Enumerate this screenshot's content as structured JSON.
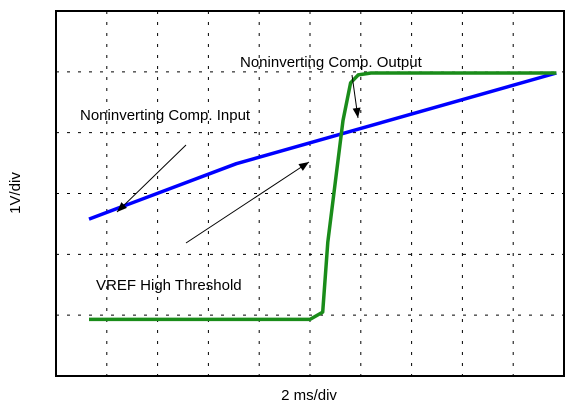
{
  "chart_data": {
    "type": "line",
    "xlabel": "2 ms/div",
    "ylabel": "1V/div",
    "xlim": [
      0,
      10
    ],
    "ylim": [
      0,
      6
    ],
    "grid": true,
    "x_divisions": 10,
    "y_divisions": 6,
    "series": [
      {
        "name": "Noninverting Comp. Input",
        "color": "#0000ff",
        "points": [
          [
            0.65,
            2.58
          ],
          [
            3.55,
            3.49
          ],
          [
            9.85,
            4.98
          ]
        ]
      },
      {
        "name": "Noninverting Comp. Output",
        "color": "#1a8c1a",
        "points": [
          [
            0.65,
            0.93
          ],
          [
            5.0,
            0.93
          ],
          [
            5.25,
            1.05
          ],
          [
            5.35,
            2.2
          ],
          [
            5.5,
            3.2
          ],
          [
            5.65,
            4.2
          ],
          [
            5.8,
            4.82
          ],
          [
            5.95,
            4.95
          ],
          [
            6.2,
            4.98
          ],
          [
            9.85,
            4.98
          ]
        ]
      }
    ],
    "annotations": [
      {
        "text": "Noninverting Comp. Output",
        "target": "output-step"
      },
      {
        "text": "Noninverting Comp. Input",
        "target": "input-ramp"
      },
      {
        "text": "VREF High Threshold",
        "target": "crossing"
      }
    ]
  }
}
